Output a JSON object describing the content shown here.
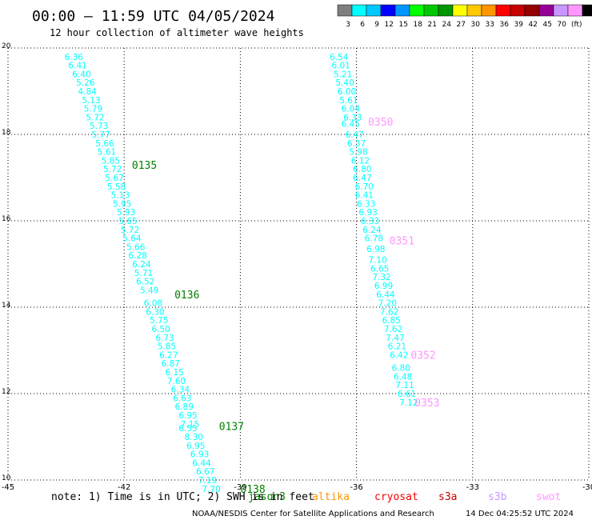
{
  "title": "00:00 – 11:59 UTC 04/05/2024",
  "subtitle": "12 hour collection of altimeter wave heights",
  "colorbar": {
    "colors": [
      "#7f7f7f",
      "#00ffff",
      "#00c8ff",
      "#0000ff",
      "#0096ff",
      "#00ff00",
      "#00c800",
      "#009600",
      "#ffff00",
      "#ffc800",
      "#ff9600",
      "#ff0000",
      "#c80000",
      "#960000",
      "#960096",
      "#c896ff",
      "#ff96ff",
      "#000000"
    ],
    "labels": [
      "3",
      "6",
      "9",
      "12",
      "15",
      "18",
      "21",
      "24",
      "27",
      "30",
      "33",
      "36",
      "39",
      "42",
      "45",
      "70",
      "(ft)"
    ]
  },
  "note": "note:  1) Time is in UTC; 2) SWH is in feet",
  "credit": "NOAA/NESDIS Center for Satellite Applications and Research",
  "timestamp": "14 Dec 04:25:52 UTC 2024",
  "satellites": [
    {
      "name": "jason3",
      "color": "#008000"
    },
    {
      "name": "altika",
      "color": "#ff9600"
    },
    {
      "name": "cryosat",
      "color": "#ff0000"
    },
    {
      "name": "s3a",
      "color": "#c80000"
    },
    {
      "name": "s3b",
      "color": "#c896ff"
    },
    {
      "name": "swot",
      "color": "#ff96ff"
    }
  ],
  "chart_data": {
    "type": "scatter",
    "xlim": [
      -45,
      -30
    ],
    "ylim": [
      10,
      20
    ],
    "x_ticks": [
      "-45",
      "-42",
      "-39",
      "-36",
      "-33",
      "-30"
    ],
    "y_ticks": [
      "10",
      "12",
      "14",
      "16",
      "18",
      "20"
    ],
    "grid": true,
    "series": [
      {
        "name": "track-1",
        "color": "#00ffff",
        "points": [
          {
            "x": -43.3,
            "y": 19.8,
            "v": "6.36"
          },
          {
            "x": -43.2,
            "y": 19.6,
            "v": "6.41"
          },
          {
            "x": -43.1,
            "y": 19.4,
            "v": "6.40"
          },
          {
            "x": -43.0,
            "y": 19.2,
            "v": "5.26"
          },
          {
            "x": -42.95,
            "y": 19.0,
            "v": "4.84"
          },
          {
            "x": -42.85,
            "y": 18.8,
            "v": "5.13"
          },
          {
            "x": -42.8,
            "y": 18.6,
            "v": "5.79"
          },
          {
            "x": -42.75,
            "y": 18.4,
            "v": "5.72"
          },
          {
            "x": -42.65,
            "y": 18.2,
            "v": "5.73"
          },
          {
            "x": -42.6,
            "y": 18.0,
            "v": "5.77"
          },
          {
            "x": -42.5,
            "y": 17.8,
            "v": "5.66"
          },
          {
            "x": -42.45,
            "y": 17.6,
            "v": "5.61"
          },
          {
            "x": -42.35,
            "y": 17.4,
            "v": "5.85"
          },
          {
            "x": -42.3,
            "y": 17.2,
            "v": "5.72"
          },
          {
            "x": -42.25,
            "y": 17.0,
            "v": "5.67"
          },
          {
            "x": -42.2,
            "y": 16.8,
            "v": "5.58"
          },
          {
            "x": -42.1,
            "y": 16.6,
            "v": "5.13"
          },
          {
            "x": -42.05,
            "y": 16.4,
            "v": "5.95"
          },
          {
            "x": -41.95,
            "y": 16.2,
            "v": "5.93"
          },
          {
            "x": -41.9,
            "y": 16.0,
            "v": "5.65"
          },
          {
            "x": -41.85,
            "y": 15.8,
            "v": "5.72"
          },
          {
            "x": -41.8,
            "y": 15.6,
            "v": "5.64"
          },
          {
            "x": -41.7,
            "y": 15.4,
            "v": "5.66"
          },
          {
            "x": -41.65,
            "y": 15.2,
            "v": "6.28"
          },
          {
            "x": -41.55,
            "y": 15.0,
            "v": "6.24"
          },
          {
            "x": -41.5,
            "y": 14.8,
            "v": "5.71"
          },
          {
            "x": -41.45,
            "y": 14.6,
            "v": "6.52"
          },
          {
            "x": -41.35,
            "y": 14.4,
            "v": "5.49"
          },
          {
            "x": -41.25,
            "y": 14.1,
            "v": "6.08"
          },
          {
            "x": -41.2,
            "y": 13.9,
            "v": "6.30"
          },
          {
            "x": -41.1,
            "y": 13.7,
            "v": "5.75"
          },
          {
            "x": -41.05,
            "y": 13.5,
            "v": "6.50"
          },
          {
            "x": -40.95,
            "y": 13.3,
            "v": "6.73"
          },
          {
            "x": -40.9,
            "y": 13.1,
            "v": "5.85"
          },
          {
            "x": -40.85,
            "y": 12.9,
            "v": "6.27"
          },
          {
            "x": -40.8,
            "y": 12.7,
            "v": "6.87"
          },
          {
            "x": -40.7,
            "y": 12.5,
            "v": "6.15"
          },
          {
            "x": -40.65,
            "y": 12.3,
            "v": "7.60"
          },
          {
            "x": -40.55,
            "y": 12.1,
            "v": "6.34"
          },
          {
            "x": -40.5,
            "y": 11.9,
            "v": "6.63"
          },
          {
            "x": -40.45,
            "y": 11.7,
            "v": "6.89"
          },
          {
            "x": -40.35,
            "y": 11.5,
            "v": "6.95"
          },
          {
            "x": -40.3,
            "y": 11.3,
            "v": "7.15"
          },
          {
            "x": -40.35,
            "y": 11.2,
            "v": "6.55"
          },
          {
            "x": -40.2,
            "y": 11.0,
            "v": "8.30"
          },
          {
            "x": -40.15,
            "y": 10.8,
            "v": "6.95"
          },
          {
            "x": -40.05,
            "y": 10.6,
            "v": "6.93"
          },
          {
            "x": -40.0,
            "y": 10.4,
            "v": "6.44"
          },
          {
            "x": -39.9,
            "y": 10.2,
            "v": "6.67"
          },
          {
            "x": -39.85,
            "y": 10.0,
            "v": "7.19"
          },
          {
            "x": -39.75,
            "y": 9.8,
            "v": "7.70"
          }
        ]
      },
      {
        "name": "track-2",
        "color": "#00ffff",
        "points": [
          {
            "x": -36.45,
            "y": 19.8,
            "v": "6.54"
          },
          {
            "x": -36.4,
            "y": 19.6,
            "v": "6.01"
          },
          {
            "x": -36.35,
            "y": 19.4,
            "v": "5.21"
          },
          {
            "x": -36.3,
            "y": 19.2,
            "v": "5.40"
          },
          {
            "x": -36.25,
            "y": 19.0,
            "v": "6.00"
          },
          {
            "x": -36.2,
            "y": 18.8,
            "v": "5.61"
          },
          {
            "x": -36.15,
            "y": 18.6,
            "v": "6.04"
          },
          {
            "x": -36.1,
            "y": 18.4,
            "v": "6.33"
          },
          {
            "x": -36.15,
            "y": 18.25,
            "v": "6.45"
          },
          {
            "x": -36.05,
            "y": 18.0,
            "v": "6.47"
          },
          {
            "x": -36.0,
            "y": 17.8,
            "v": "6.37"
          },
          {
            "x": -35.95,
            "y": 17.6,
            "v": "5.98"
          },
          {
            "x": -35.9,
            "y": 17.4,
            "v": "6.12"
          },
          {
            "x": -35.85,
            "y": 17.2,
            "v": "6.80"
          },
          {
            "x": -35.85,
            "y": 17.0,
            "v": "6.47"
          },
          {
            "x": -35.8,
            "y": 16.8,
            "v": "6.70"
          },
          {
            "x": -35.8,
            "y": 16.6,
            "v": "6.41"
          },
          {
            "x": -35.75,
            "y": 16.4,
            "v": "6.33"
          },
          {
            "x": -35.7,
            "y": 16.2,
            "v": "6.93"
          },
          {
            "x": -35.65,
            "y": 16.0,
            "v": "6.33"
          },
          {
            "x": -35.6,
            "y": 15.8,
            "v": "6.24"
          },
          {
            "x": -35.55,
            "y": 15.6,
            "v": "6.78"
          },
          {
            "x": -35.5,
            "y": 15.35,
            "v": "6.98"
          },
          {
            "x": -35.45,
            "y": 15.1,
            "v": "7.10"
          },
          {
            "x": -35.4,
            "y": 14.9,
            "v": "6.65"
          },
          {
            "x": -35.35,
            "y": 14.7,
            "v": "7.32"
          },
          {
            "x": -35.3,
            "y": 14.5,
            "v": "6.99"
          },
          {
            "x": -35.25,
            "y": 14.3,
            "v": "6.44"
          },
          {
            "x": -35.2,
            "y": 14.1,
            "v": "7.20"
          },
          {
            "x": -35.15,
            "y": 13.9,
            "v": "7.62"
          },
          {
            "x": -35.1,
            "y": 13.7,
            "v": "6.85"
          },
          {
            "x": -35.05,
            "y": 13.5,
            "v": "7.62"
          },
          {
            "x": -35.0,
            "y": 13.3,
            "v": "7.47"
          },
          {
            "x": -34.95,
            "y": 13.1,
            "v": "6.21"
          },
          {
            "x": -34.9,
            "y": 12.9,
            "v": "6.42"
          },
          {
            "x": -34.85,
            "y": 12.6,
            "v": "6.80"
          },
          {
            "x": -34.8,
            "y": 12.4,
            "v": "6.48"
          },
          {
            "x": -34.75,
            "y": 12.2,
            "v": "7.11"
          },
          {
            "x": -34.7,
            "y": 12.0,
            "v": "6.61"
          },
          {
            "x": -34.65,
            "y": 11.8,
            "v": "7.12"
          }
        ]
      }
    ],
    "pass_labels": [
      {
        "text": "0135",
        "x": -41.8,
        "y": 17.3,
        "color": "#008000"
      },
      {
        "text": "0136",
        "x": -40.7,
        "y": 14.3,
        "color": "#008000"
      },
      {
        "text": "0137",
        "x": -39.55,
        "y": 11.25,
        "color": "#008000"
      },
      {
        "text": "0138",
        "x": -39.0,
        "y": 9.8,
        "color": "#008000"
      },
      {
        "text": "0350",
        "x": -35.7,
        "y": 18.3,
        "color": "#ff96ff"
      },
      {
        "text": "0351",
        "x": -35.15,
        "y": 15.55,
        "color": "#ff96ff"
      },
      {
        "text": "0352",
        "x": -34.6,
        "y": 12.9,
        "color": "#ff96ff"
      },
      {
        "text": "0353",
        "x": -34.5,
        "y": 11.8,
        "color": "#ff96ff"
      }
    ]
  }
}
